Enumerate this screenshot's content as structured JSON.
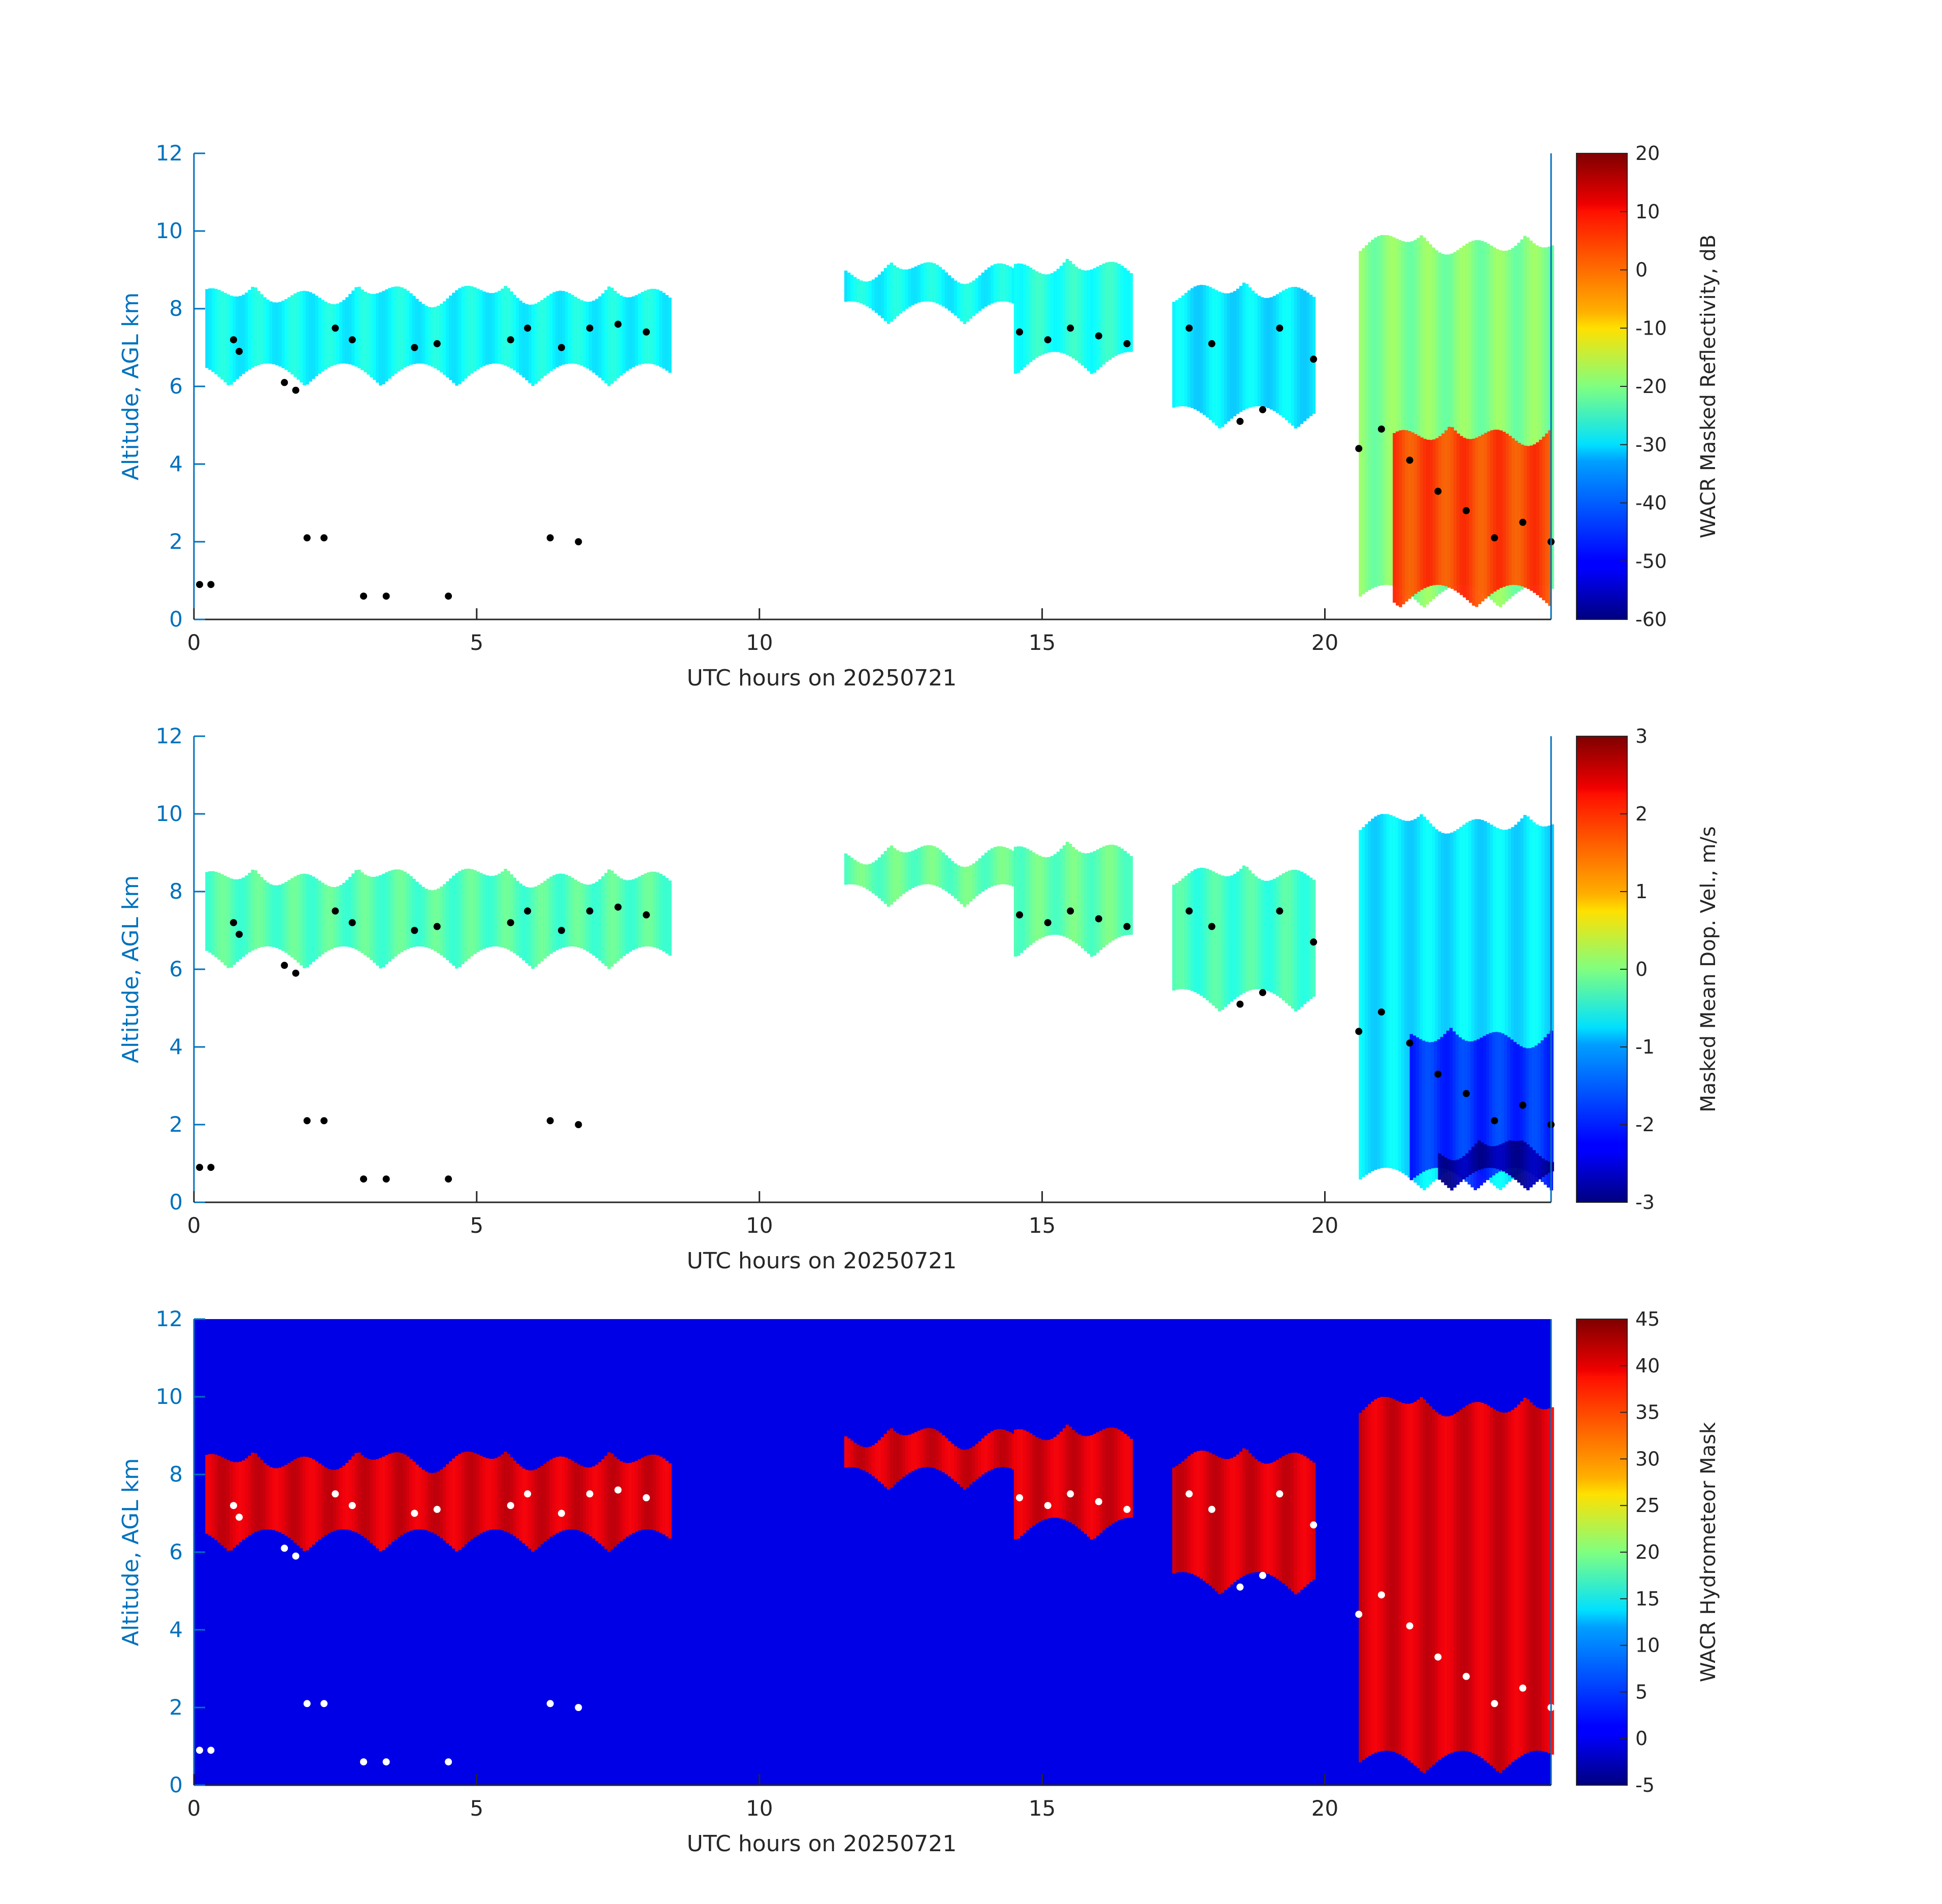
{
  "chart_data": [
    {
      "type": "heatmap",
      "title": "",
      "xlabel": "UTC hours on 20250721",
      "ylabel": "Altitude, AGL km",
      "xlim": [
        0,
        24
      ],
      "ylim": [
        0,
        12
      ],
      "xticks": [
        0,
        5,
        10,
        15,
        20
      ],
      "yticks": [
        0,
        2,
        4,
        6,
        8,
        10,
        12
      ],
      "colorbar": {
        "label": "WACR Masked Reflectivity, dB",
        "range": [
          -60,
          20
        ],
        "ticks": [
          20,
          10,
          0,
          -10,
          -20,
          -30,
          -40,
          -50,
          -60
        ],
        "colormap": "jet"
      },
      "cloud_layers": [
        {
          "x": [
            0.2,
            8.4
          ],
          "top": 8.6,
          "base": 6.0,
          "level": -30
        },
        {
          "x": [
            11.5,
            14.5
          ],
          "top": 9.2,
          "base": 7.6,
          "level": -30
        },
        {
          "x": [
            14.5,
            16.6
          ],
          "top": 9.3,
          "base": 6.3,
          "level": -28
        },
        {
          "x": [
            17.3,
            19.8
          ],
          "top": 8.7,
          "base": 4.9,
          "level": -32
        },
        {
          "x": [
            20.6,
            24.0
          ],
          "top": 9.9,
          "base": 0.3,
          "level": -20
        },
        {
          "x": [
            21.2,
            24.0
          ],
          "top": 5.0,
          "base": 0.3,
          "level": 5
        }
      ],
      "points": [
        [
          0.7,
          7.2
        ],
        [
          0.8,
          6.9
        ],
        [
          1.6,
          6.1
        ],
        [
          1.8,
          5.9
        ],
        [
          2.5,
          7.5
        ],
        [
          2.8,
          7.2
        ],
        [
          3.9,
          7.0
        ],
        [
          4.3,
          7.1
        ],
        [
          5.6,
          7.2
        ],
        [
          5.9,
          7.5
        ],
        [
          6.5,
          7.0
        ],
        [
          7.0,
          7.5
        ],
        [
          7.5,
          7.6
        ],
        [
          8.0,
          7.4
        ],
        [
          14.6,
          7.4
        ],
        [
          15.1,
          7.2
        ],
        [
          15.5,
          7.5
        ],
        [
          16.0,
          7.3
        ],
        [
          16.5,
          7.1
        ],
        [
          17.6,
          7.5
        ],
        [
          18.0,
          7.1
        ],
        [
          18.5,
          5.1
        ],
        [
          18.9,
          5.4
        ],
        [
          19.2,
          7.5
        ],
        [
          19.8,
          6.7
        ],
        [
          20.6,
          4.4
        ],
        [
          21.0,
          4.9
        ],
        [
          21.5,
          4.1
        ],
        [
          22.0,
          3.3
        ],
        [
          22.5,
          2.8
        ],
        [
          23.0,
          2.1
        ],
        [
          23.5,
          2.5
        ],
        [
          24.0,
          2.0
        ],
        [
          2.0,
          2.1
        ],
        [
          2.3,
          2.1
        ],
        [
          6.3,
          2.1
        ],
        [
          6.8,
          2.0
        ],
        [
          0.1,
          0.9
        ],
        [
          0.3,
          0.9
        ],
        [
          3.0,
          0.6
        ],
        [
          3.4,
          0.6
        ],
        [
          4.5,
          0.6
        ]
      ]
    },
    {
      "type": "heatmap",
      "title": "",
      "xlabel": "UTC hours on 20250721",
      "ylabel": "Altitude, AGL km",
      "xlim": [
        0,
        24
      ],
      "ylim": [
        0,
        12
      ],
      "xticks": [
        0,
        5,
        10,
        15,
        20
      ],
      "yticks": [
        0,
        2,
        4,
        6,
        8,
        10,
        12
      ],
      "colorbar": {
        "label": "Masked Mean Dop. Vel., m/s",
        "range": [
          -3,
          3
        ],
        "ticks": [
          3,
          2,
          1,
          0,
          -1,
          -2,
          -3
        ],
        "colormap": "jet"
      },
      "cloud_layers": [
        {
          "x": [
            0.2,
            8.4
          ],
          "top": 8.6,
          "base": 6.0,
          "level": -0.3
        },
        {
          "x": [
            11.5,
            14.5
          ],
          "top": 9.2,
          "base": 7.6,
          "level": -0.2
        },
        {
          "x": [
            14.5,
            16.6
          ],
          "top": 9.3,
          "base": 6.3,
          "level": -0.2
        },
        {
          "x": [
            17.3,
            19.8
          ],
          "top": 8.7,
          "base": 4.9,
          "level": -0.4
        },
        {
          "x": [
            20.6,
            24.0
          ],
          "top": 10.0,
          "base": 0.3,
          "level": -0.9
        },
        {
          "x": [
            21.5,
            24.0
          ],
          "top": 4.5,
          "base": 0.3,
          "level": -2.0
        },
        {
          "x": [
            22.0,
            24.0
          ],
          "top": 1.6,
          "base": 0.3,
          "level": -2.8
        }
      ],
      "points": [
        [
          0.7,
          7.2
        ],
        [
          0.8,
          6.9
        ],
        [
          1.6,
          6.1
        ],
        [
          1.8,
          5.9
        ],
        [
          2.5,
          7.5
        ],
        [
          2.8,
          7.2
        ],
        [
          3.9,
          7.0
        ],
        [
          4.3,
          7.1
        ],
        [
          5.6,
          7.2
        ],
        [
          5.9,
          7.5
        ],
        [
          6.5,
          7.0
        ],
        [
          7.0,
          7.5
        ],
        [
          7.5,
          7.6
        ],
        [
          8.0,
          7.4
        ],
        [
          14.6,
          7.4
        ],
        [
          15.1,
          7.2
        ],
        [
          15.5,
          7.5
        ],
        [
          16.0,
          7.3
        ],
        [
          16.5,
          7.1
        ],
        [
          17.6,
          7.5
        ],
        [
          18.0,
          7.1
        ],
        [
          18.5,
          5.1
        ],
        [
          18.9,
          5.4
        ],
        [
          19.2,
          7.5
        ],
        [
          19.8,
          6.7
        ],
        [
          20.6,
          4.4
        ],
        [
          21.0,
          4.9
        ],
        [
          21.5,
          4.1
        ],
        [
          22.0,
          3.3
        ],
        [
          22.5,
          2.8
        ],
        [
          23.0,
          2.1
        ],
        [
          23.5,
          2.5
        ],
        [
          24.0,
          2.0
        ],
        [
          2.0,
          2.1
        ],
        [
          2.3,
          2.1
        ],
        [
          6.3,
          2.1
        ],
        [
          6.8,
          2.0
        ],
        [
          0.1,
          0.9
        ],
        [
          0.3,
          0.9
        ],
        [
          3.0,
          0.6
        ],
        [
          3.4,
          0.6
        ],
        [
          4.5,
          0.6
        ]
      ]
    },
    {
      "type": "heatmap",
      "title": "",
      "xlabel": "UTC hours on 20250721",
      "ylabel": "Altitude, AGL km",
      "xlim": [
        0,
        24
      ],
      "ylim": [
        0,
        12
      ],
      "xticks": [
        0,
        5,
        10,
        15,
        20
      ],
      "yticks": [
        0,
        2,
        4,
        6,
        8,
        10,
        12
      ],
      "colorbar": {
        "label": "WACR Hydrometeor Mask",
        "range": [
          -5,
          45
        ],
        "ticks": [
          45,
          40,
          35,
          30,
          25,
          20,
          15,
          10,
          5,
          0,
          -5
        ],
        "colormap": "jet"
      },
      "background_level": 0,
      "cloud_layers": [
        {
          "x": [
            0.2,
            8.4
          ],
          "top": 8.6,
          "base": 6.0,
          "level": 40
        },
        {
          "x": [
            11.5,
            14.5
          ],
          "top": 9.2,
          "base": 7.6,
          "level": 40
        },
        {
          "x": [
            14.5,
            16.6
          ],
          "top": 9.3,
          "base": 6.3,
          "level": 40
        },
        {
          "x": [
            17.3,
            19.8
          ],
          "top": 8.7,
          "base": 4.9,
          "level": 40
        },
        {
          "x": [
            20.6,
            24.0
          ],
          "top": 10.0,
          "base": 0.3,
          "level": 40
        }
      ],
      "points": [
        [
          0.7,
          7.2
        ],
        [
          0.8,
          6.9
        ],
        [
          1.6,
          6.1
        ],
        [
          1.8,
          5.9
        ],
        [
          2.5,
          7.5
        ],
        [
          2.8,
          7.2
        ],
        [
          3.9,
          7.0
        ],
        [
          4.3,
          7.1
        ],
        [
          5.6,
          7.2
        ],
        [
          5.9,
          7.5
        ],
        [
          6.5,
          7.0
        ],
        [
          7.0,
          7.5
        ],
        [
          7.5,
          7.6
        ],
        [
          8.0,
          7.4
        ],
        [
          14.6,
          7.4
        ],
        [
          15.1,
          7.2
        ],
        [
          15.5,
          7.5
        ],
        [
          16.0,
          7.3
        ],
        [
          16.5,
          7.1
        ],
        [
          17.6,
          7.5
        ],
        [
          18.0,
          7.1
        ],
        [
          18.5,
          5.1
        ],
        [
          18.9,
          5.4
        ],
        [
          19.2,
          7.5
        ],
        [
          19.8,
          6.7
        ],
        [
          20.6,
          4.4
        ],
        [
          21.0,
          4.9
        ],
        [
          21.5,
          4.1
        ],
        [
          22.0,
          3.3
        ],
        [
          22.5,
          2.8
        ],
        [
          23.0,
          2.1
        ],
        [
          23.5,
          2.5
        ],
        [
          24.0,
          2.0
        ],
        [
          2.0,
          2.1
        ],
        [
          2.3,
          2.1
        ],
        [
          6.3,
          2.1
        ],
        [
          6.8,
          2.0
        ],
        [
          0.1,
          0.9
        ],
        [
          0.3,
          0.9
        ],
        [
          3.0,
          0.6
        ],
        [
          3.4,
          0.6
        ],
        [
          4.5,
          0.6
        ]
      ]
    }
  ]
}
